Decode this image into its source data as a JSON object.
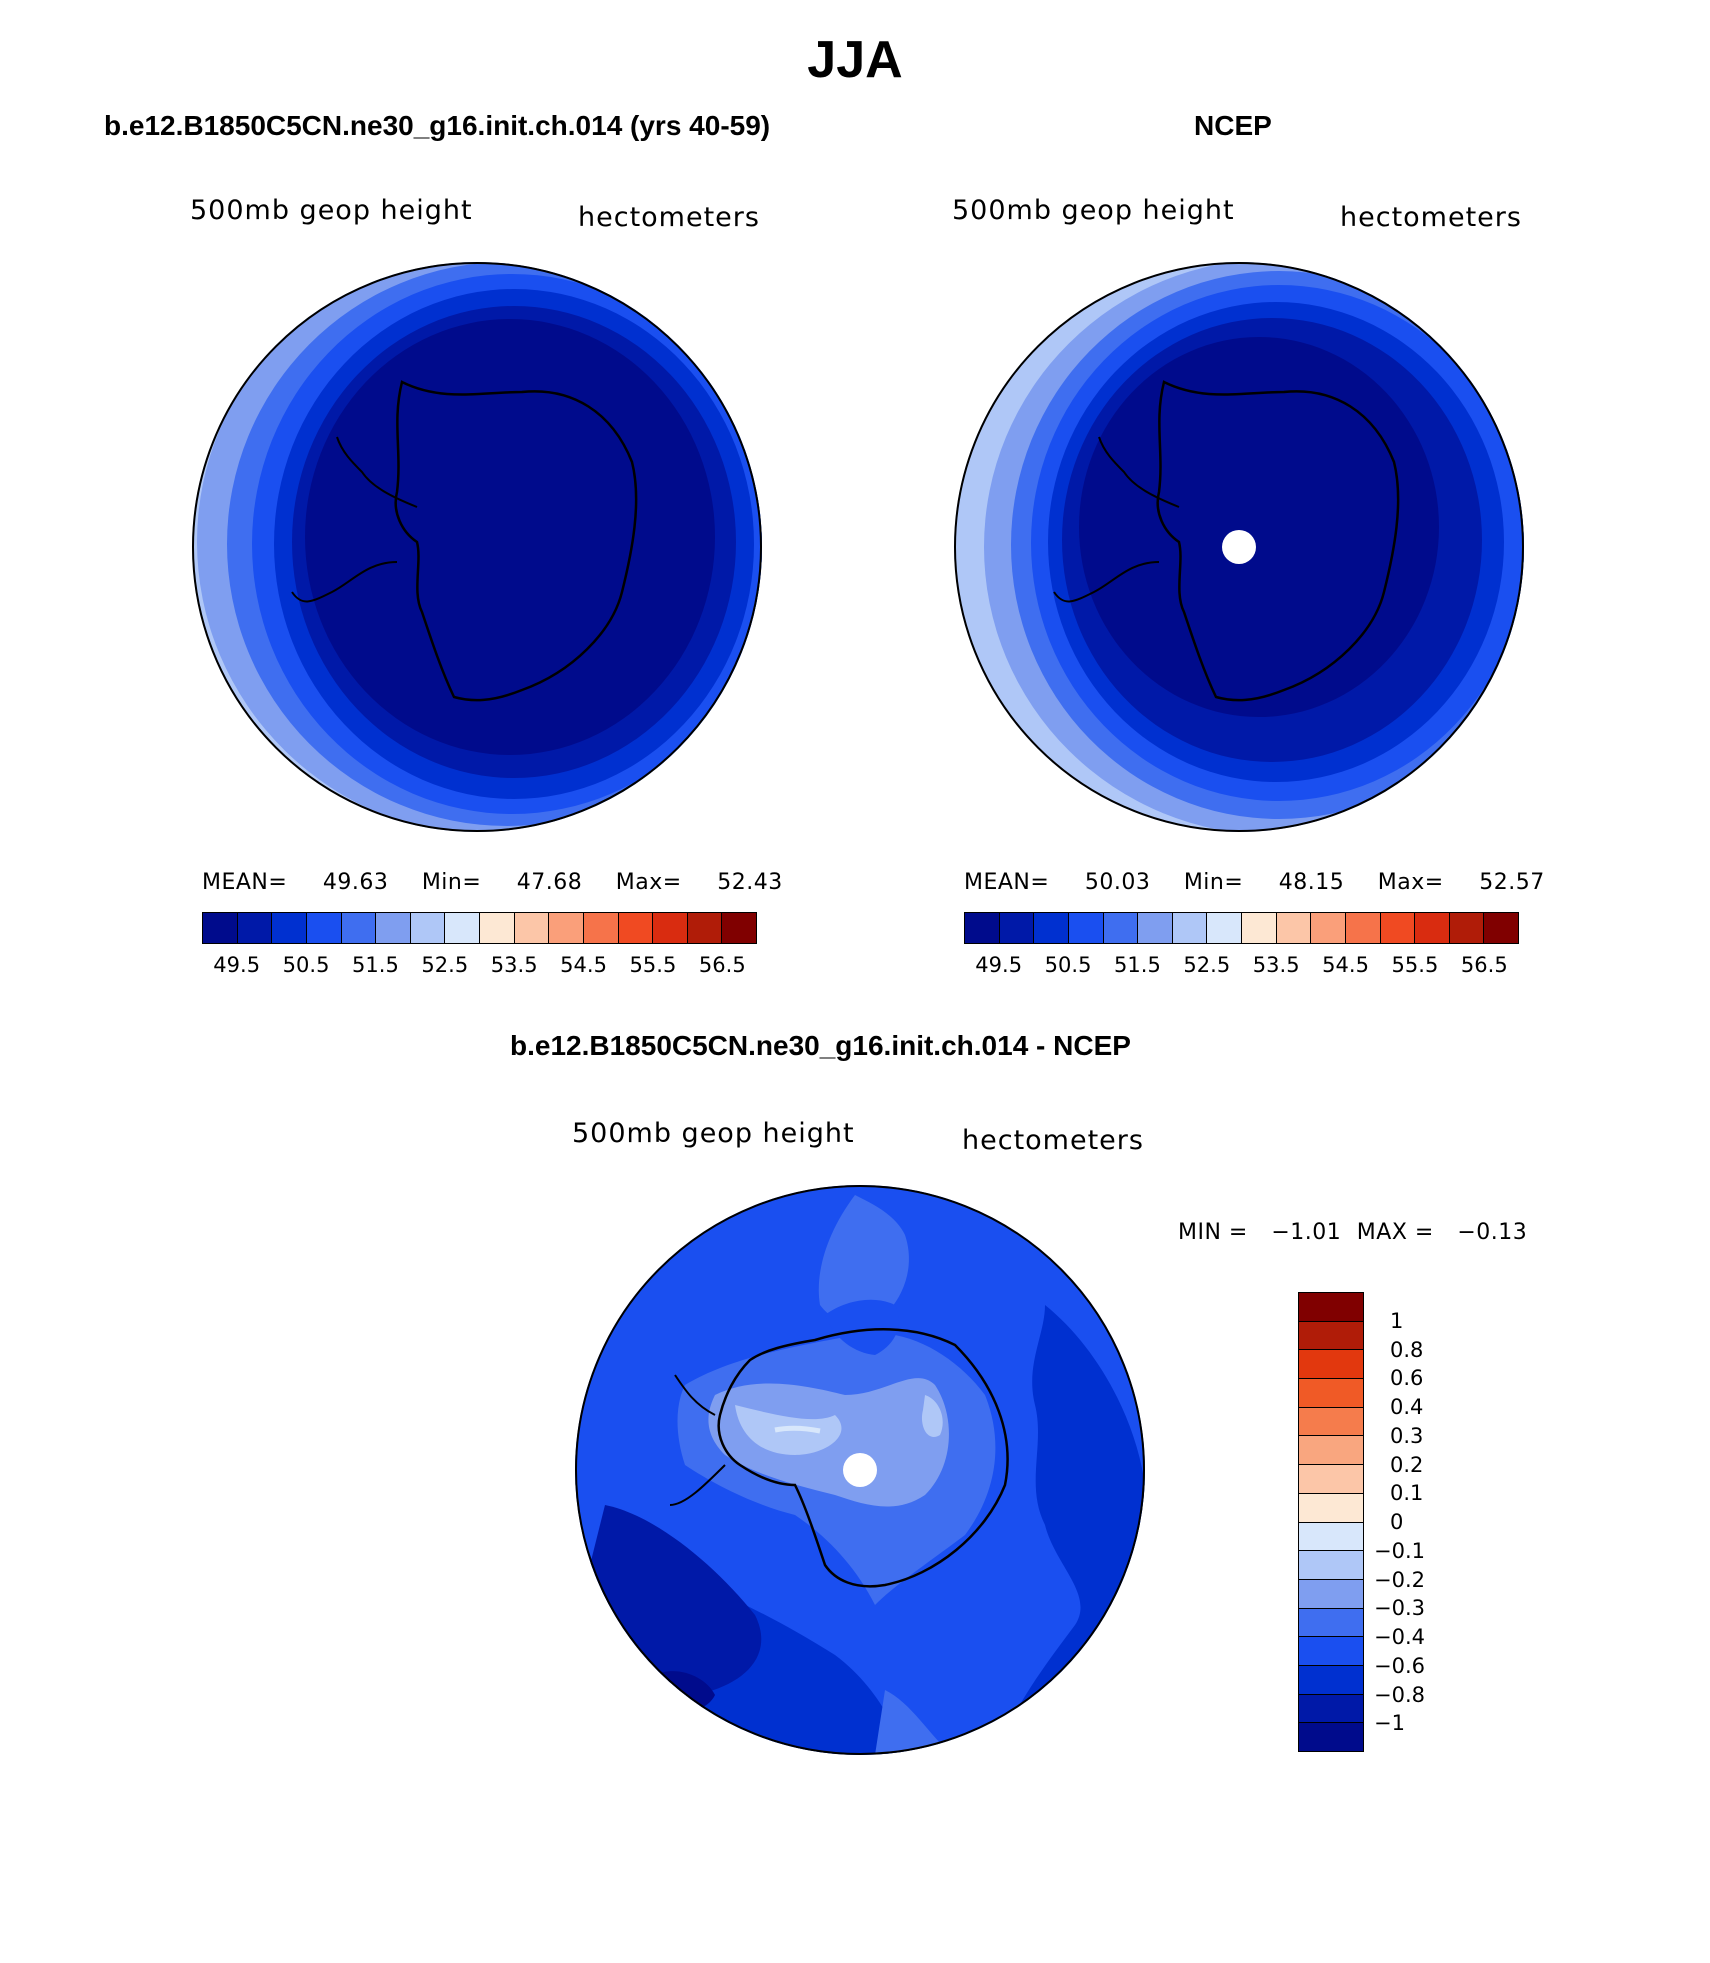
{
  "page_title": "JJA",
  "panels": [
    {
      "title": "b.e12.B1850C5CN.ne30_g16.init.ch.014 (yrs 40-59)",
      "left_label": "500mb geop height",
      "right_label": "hectometers",
      "stats": {
        "mean_label": "MEAN=",
        "mean": "49.63",
        "min_label": "Min=",
        "min": "47.68",
        "max_label": "Max=",
        "max": "52.43"
      }
    },
    {
      "title": "NCEP",
      "left_label": "500mb geop height",
      "right_label": "hectometers",
      "stats": {
        "mean_label": "MEAN=",
        "mean": "50.03",
        "min_label": "Min=",
        "min": "48.15",
        "max_label": "Max=",
        "max": "52.57"
      }
    },
    {
      "title": "b.e12.B1850C5CN.ne30_g16.init.ch.014 - NCEP",
      "left_label": "500mb geop height",
      "right_label": "hectometers",
      "stats": {
        "min_label": "MIN =",
        "min": "−1.01",
        "max_label": "MAX =",
        "max": "−0.13"
      }
    }
  ],
  "colorbar_abs": {
    "colors": [
      "#000b8c",
      "#0019a8",
      "#0030d0",
      "#1a4ff0",
      "#3f6ef0",
      "#7f9ef0",
      "#afc7f7",
      "#d8e7fb",
      "#fde8d4",
      "#fcc6a8",
      "#fa9f7a",
      "#f6734a",
      "#f04a22",
      "#d92c10",
      "#b01c08",
      "#800000"
    ],
    "tick_labels": [
      "49.5",
      "50.5",
      "51.5",
      "52.5",
      "53.5",
      "54.5",
      "55.5",
      "56.5"
    ]
  },
  "colorbar_diff": {
    "colors_top_to_bottom": [
      "#800000",
      "#b01c08",
      "#e2380e",
      "#f05a26",
      "#f57c4c",
      "#f9a67f",
      "#fcc6a8",
      "#fde8d4",
      "#d8e7fb",
      "#afc7f7",
      "#7f9ef0",
      "#3f6ef0",
      "#1a4ff0",
      "#0030d0",
      "#0019a8",
      "#000b8c"
    ],
    "tick_labels_top_to_bottom": [
      "1",
      "0.8",
      "0.6",
      "0.4",
      "0.3",
      "0.2",
      "0.1",
      "0",
      "−0.1",
      "−0.2",
      "−0.3",
      "−0.4",
      "−0.6",
      "−0.8",
      "−1"
    ]
  },
  "colors": {
    "pole_hole": "#ffffff",
    "coastline": "#000000"
  }
}
